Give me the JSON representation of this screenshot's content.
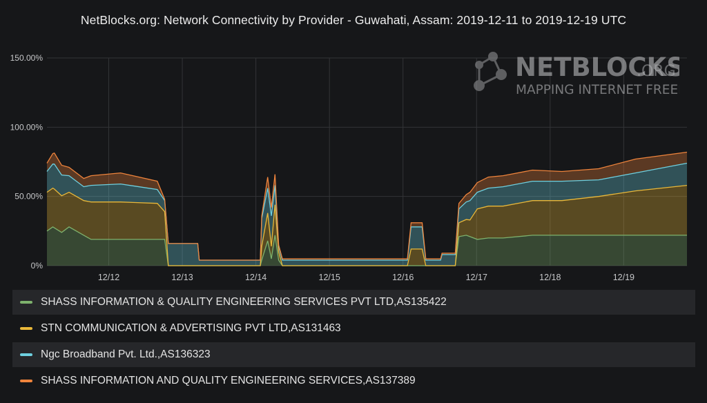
{
  "title": "NetBlocks.org: Network Connectivity by Provider - Guwahati, Assam: 2019-12-11 to 2019-12-19 UTC",
  "watermark": {
    "brand": "NETBLOCKS",
    "suffix": ".ORG",
    "tagline": "MAPPING INTERNET FREEDOM"
  },
  "chart_data": {
    "type": "area",
    "stacked": true,
    "title": "NetBlocks.org: Network Connectivity by Provider - Guwahati, Assam: 2019-12-11 to 2019-12-19 UTC",
    "ylim": [
      0,
      150
    ],
    "yticks": [
      {
        "value": 0,
        "label": "0%"
      },
      {
        "value": 50,
        "label": "50.00%"
      },
      {
        "value": 100,
        "label": "100.00%"
      },
      {
        "value": 150,
        "label": "150.00%"
      }
    ],
    "xlim": [
      0.0,
      8.7
    ],
    "xticks": [
      {
        "value": 0.84,
        "label": "12/12"
      },
      {
        "value": 1.84,
        "label": "12/13"
      },
      {
        "value": 2.84,
        "label": "12/14"
      },
      {
        "value": 3.84,
        "label": "12/15"
      },
      {
        "value": 4.84,
        "label": "12/16"
      },
      {
        "value": 5.84,
        "label": "12/17"
      },
      {
        "value": 6.84,
        "label": "12/18"
      },
      {
        "value": 7.84,
        "label": "12/19"
      }
    ],
    "grid": true,
    "legend_position": "bottom",
    "series": [
      {
        "name": "SHASS INFORMATION & QUALITY ENGINEERING SERVICES PVT LTD,AS135422",
        "color": "#7eb26d",
        "points": [
          [
            0.0,
            25
          ],
          [
            0.08,
            28
          ],
          [
            0.2,
            24
          ],
          [
            0.3,
            28
          ],
          [
            0.5,
            22
          ],
          [
            0.6,
            19
          ],
          [
            1.0,
            19
          ],
          [
            1.2,
            19
          ],
          [
            1.5,
            19
          ],
          [
            1.6,
            19
          ],
          [
            1.65,
            0
          ],
          [
            2.9,
            0
          ],
          [
            2.92,
            4
          ],
          [
            3.0,
            18
          ],
          [
            3.05,
            5
          ],
          [
            3.1,
            22
          ],
          [
            3.15,
            4
          ],
          [
            3.2,
            0
          ],
          [
            4.9,
            0
          ],
          [
            5.55,
            0
          ],
          [
            5.6,
            21
          ],
          [
            5.7,
            22
          ],
          [
            5.85,
            19
          ],
          [
            6.0,
            20
          ],
          [
            6.2,
            20
          ],
          [
            6.6,
            22
          ],
          [
            7.0,
            22
          ],
          [
            7.5,
            22
          ],
          [
            8.0,
            22
          ],
          [
            8.7,
            22
          ]
        ]
      },
      {
        "name": "STN COMMUNICATION & ADVERTISING PVT LTD,AS131463",
        "color": "#eab839",
        "points": [
          [
            0.0,
            28
          ],
          [
            0.1,
            28
          ],
          [
            0.3,
            25
          ],
          [
            0.5,
            25
          ],
          [
            0.6,
            27
          ],
          [
            1.0,
            27
          ],
          [
            1.5,
            26
          ],
          [
            1.6,
            20
          ],
          [
            1.65,
            0
          ],
          [
            2.9,
            0
          ],
          [
            2.92,
            10
          ],
          [
            3.0,
            20
          ],
          [
            3.05,
            9
          ],
          [
            3.1,
            22
          ],
          [
            3.15,
            6
          ],
          [
            3.2,
            0
          ],
          [
            4.9,
            0
          ],
          [
            4.95,
            12
          ],
          [
            5.1,
            12
          ],
          [
            5.15,
            0
          ],
          [
            5.55,
            0
          ],
          [
            5.6,
            10
          ],
          [
            5.75,
            12
          ],
          [
            5.85,
            22
          ],
          [
            6.0,
            23
          ],
          [
            6.2,
            23
          ],
          [
            6.6,
            25
          ],
          [
            7.0,
            25
          ],
          [
            7.5,
            28
          ],
          [
            8.0,
            32
          ],
          [
            8.7,
            36
          ]
        ]
      },
      {
        "name": "Ngc Broadband Pvt. Ltd.,AS136323",
        "color": "#6ed0e0",
        "points": [
          [
            0.0,
            15
          ],
          [
            0.1,
            18
          ],
          [
            0.3,
            12
          ],
          [
            0.5,
            10
          ],
          [
            0.6,
            12
          ],
          [
            1.0,
            13
          ],
          [
            1.5,
            10
          ],
          [
            1.6,
            8
          ],
          [
            1.65,
            16
          ],
          [
            2.05,
            16
          ],
          [
            2.07,
            4
          ],
          [
            2.9,
            4
          ],
          [
            2.92,
            20
          ],
          [
            3.0,
            18
          ],
          [
            3.05,
            22
          ],
          [
            3.1,
            14
          ],
          [
            3.15,
            4
          ],
          [
            3.2,
            4
          ],
          [
            4.9,
            4
          ],
          [
            4.95,
            16
          ],
          [
            5.1,
            16
          ],
          [
            5.15,
            4
          ],
          [
            5.35,
            4
          ],
          [
            5.37,
            8
          ],
          [
            5.55,
            8
          ],
          [
            5.6,
            10
          ],
          [
            5.75,
            14
          ],
          [
            5.85,
            12
          ],
          [
            6.0,
            13
          ],
          [
            6.2,
            14
          ],
          [
            6.6,
            14
          ],
          [
            7.0,
            14
          ],
          [
            7.5,
            12
          ],
          [
            8.0,
            13
          ],
          [
            8.7,
            16
          ]
        ]
      },
      {
        "name": "SHASS INFORMATION AND QUALITY ENGINEERING SERVICES,AS137389",
        "color": "#ef843c",
        "points": [
          [
            0.0,
            6
          ],
          [
            0.1,
            8
          ],
          [
            0.3,
            6
          ],
          [
            0.5,
            6
          ],
          [
            0.6,
            7
          ],
          [
            1.0,
            8
          ],
          [
            1.5,
            6
          ],
          [
            1.6,
            1
          ],
          [
            1.65,
            0
          ],
          [
            2.9,
            0
          ],
          [
            2.92,
            2
          ],
          [
            3.0,
            8
          ],
          [
            3.05,
            6
          ],
          [
            3.1,
            8
          ],
          [
            3.15,
            1
          ],
          [
            3.2,
            1
          ],
          [
            4.9,
            1
          ],
          [
            4.95,
            3
          ],
          [
            5.1,
            3
          ],
          [
            5.15,
            1
          ],
          [
            5.55,
            1
          ],
          [
            5.6,
            4
          ],
          [
            5.75,
            6
          ],
          [
            5.85,
            7
          ],
          [
            6.0,
            8
          ],
          [
            6.2,
            8
          ],
          [
            6.6,
            8
          ],
          [
            7.0,
            7
          ],
          [
            7.5,
            8
          ],
          [
            8.0,
            10
          ],
          [
            8.7,
            8
          ]
        ]
      }
    ]
  }
}
